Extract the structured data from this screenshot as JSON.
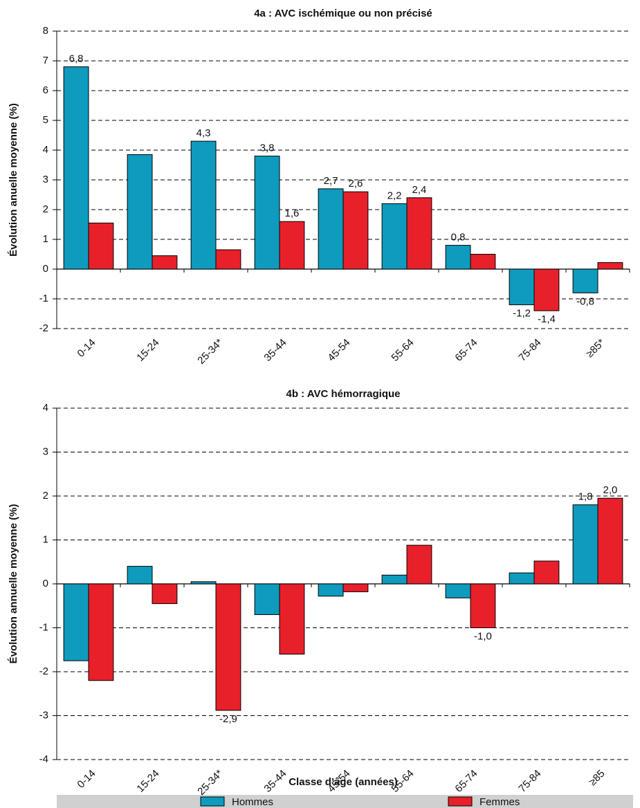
{
  "chart_data": [
    {
      "type": "bar",
      "title": "4a : AVC ischémique ou non précisé",
      "y_label": "Évolution anuelle moyenne (%)",
      "categories": [
        "0-14",
        "15-24",
        "25-34*",
        "35-44",
        "45-54",
        "55-64",
        "65-74",
        "75-84",
        "≥85*"
      ],
      "series": [
        {
          "color": "#0e9bbd",
          "values": [
            6.8,
            3.85,
            4.3,
            3.8,
            2.7,
            2.2,
            0.8,
            -1.2,
            -0.8
          ],
          "value_labels": [
            "6,8",
            null,
            "4,3",
            "3,8",
            "2,7",
            "2,2",
            "0,8",
            "-1,2",
            "-0,8"
          ]
        },
        {
          "color": "#e8202a",
          "values": [
            1.55,
            0.45,
            0.65,
            1.6,
            2.6,
            2.4,
            0.5,
            -1.4,
            0.22
          ],
          "value_labels": [
            null,
            null,
            null,
            "1,6",
            "2,6",
            "2,4",
            null,
            "-1,4",
            null
          ]
        }
      ],
      "ylim": [
        -2,
        8
      ],
      "yticks": [
        -2,
        -1,
        0,
        1,
        2,
        3,
        4,
        5,
        6,
        7,
        8
      ],
      "grid": true
    },
    {
      "type": "bar",
      "title": "4b : AVC hémorragique",
      "y_label": "Évolution annuelle moyenne (%)",
      "x_label": "Classe d’âge (années)",
      "categories": [
        "0-14",
        "15-24",
        "25-34*",
        "35-44",
        "45-54",
        "55-64",
        "65-74",
        "75-84",
        "≥85"
      ],
      "series": [
        {
          "name": "Hommes",
          "color": "#0e9bbd",
          "values": [
            -1.75,
            0.4,
            0.05,
            -0.7,
            -0.28,
            0.2,
            -0.32,
            0.25,
            1.8
          ],
          "value_labels": [
            null,
            null,
            null,
            null,
            null,
            null,
            null,
            null,
            "1,8"
          ]
        },
        {
          "name": "Femmes",
          "color": "#e8202a",
          "values": [
            -2.2,
            -0.45,
            -2.88,
            -1.6,
            -0.18,
            0.88,
            -1.0,
            0.52,
            1.95
          ],
          "value_labels": [
            null,
            null,
            "-2,9",
            null,
            null,
            null,
            "-1,0",
            null,
            "2,0"
          ]
        }
      ],
      "ylim": [
        -4,
        4
      ],
      "yticks": [
        -4,
        -3,
        -2,
        -1,
        0,
        1,
        2,
        3,
        4
      ],
      "grid": true
    }
  ]
}
